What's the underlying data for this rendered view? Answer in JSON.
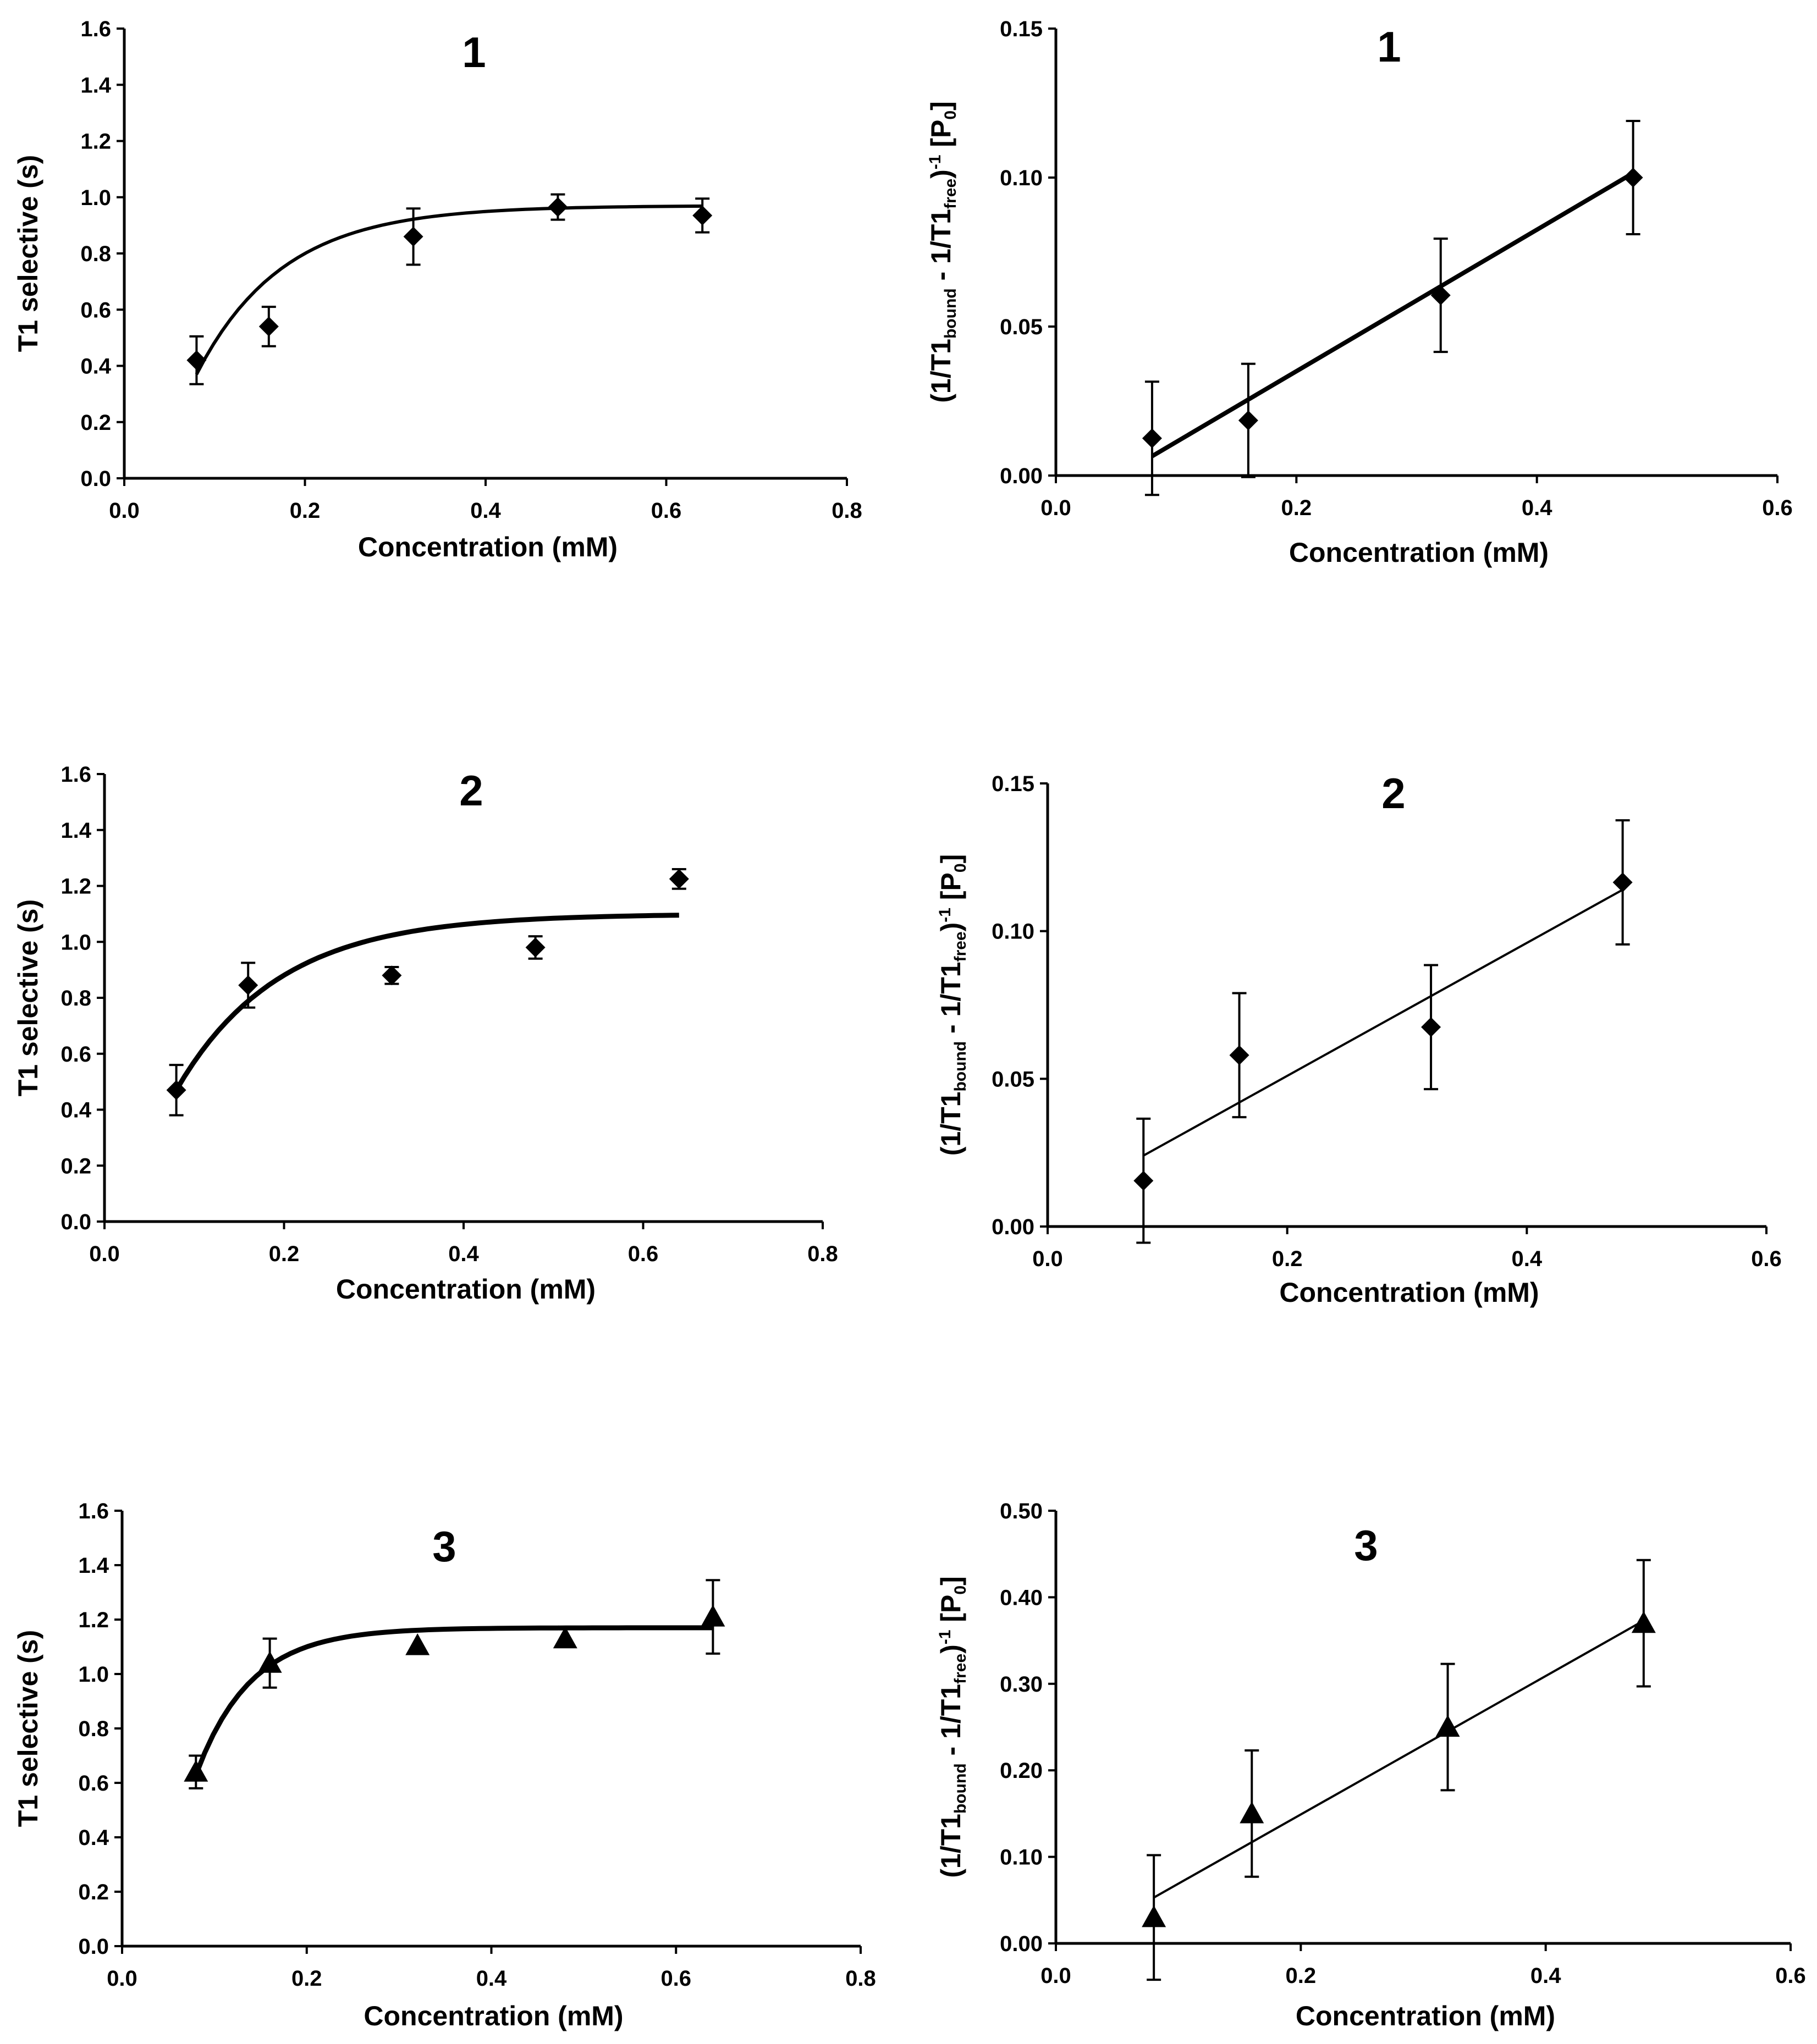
{
  "colors": {
    "ink": "#000000",
    "background": "#ffffff"
  },
  "chart_data": [
    {
      "id": "p1a",
      "type": "scatter",
      "title": "1",
      "xlabel": "Concentration (mM)",
      "ylabel": "T1 selective (s)",
      "xlim": [
        0,
        0.8
      ],
      "ylim": [
        0,
        1.6
      ],
      "x_ticks": [
        "0.0",
        "0.2",
        "0.4",
        "0.6",
        "0.8"
      ],
      "y_ticks": [
        "0.0",
        "0.2",
        "0.4",
        "0.6",
        "0.8",
        "1.0",
        "1.2",
        "1.4",
        "1.6"
      ],
      "marker": "diamond",
      "points": [
        {
          "x": 0.08,
          "y": 0.42,
          "err": 0.085
        },
        {
          "x": 0.16,
          "y": 0.54,
          "err": 0.07
        },
        {
          "x": 0.32,
          "y": 0.86,
          "err": 0.1
        },
        {
          "x": 0.48,
          "y": 0.965,
          "err": 0.045
        },
        {
          "x": 0.64,
          "y": 0.935,
          "err": 0.06
        }
      ],
      "fit": {
        "model": "saturation",
        "ymax": 0.97,
        "y0": 0.37,
        "k": 10.5,
        "x0": 0.08,
        "x1": 0.64
      }
    },
    {
      "id": "p1b",
      "type": "scatter",
      "title": "1",
      "xlabel": "Concentration (mM)",
      "ylabel_parts": [
        "(1/T1",
        "bound",
        " - 1/T1",
        "free",
        ")",
        "-1",
        " [P",
        "0",
        "]"
      ],
      "xlim": [
        0,
        0.6
      ],
      "ylim": [
        0,
        0.15
      ],
      "x_ticks": [
        "0.0",
        "0.2",
        "0.4",
        "0.6"
      ],
      "y_ticks": [
        "0.00",
        "0.05",
        "0.10",
        "0.15"
      ],
      "marker": "diamond",
      "points": [
        {
          "x": 0.08,
          "y": 0.0125,
          "err": 0.019
        },
        {
          "x": 0.16,
          "y": 0.0185,
          "err": 0.019
        },
        {
          "x": 0.32,
          "y": 0.0605,
          "err": 0.019
        },
        {
          "x": 0.48,
          "y": 0.1,
          "err": 0.019
        }
      ],
      "fit": {
        "model": "linear",
        "slope": 0.2375,
        "intercept": -0.0125,
        "x0": 0.08,
        "x1": 0.48
      }
    },
    {
      "id": "p2a",
      "type": "scatter",
      "title": "2",
      "xlabel": "Concentration (mM)",
      "ylabel": "T1 selective (s)",
      "xlim": [
        0,
        0.8
      ],
      "ylim": [
        0,
        1.6
      ],
      "x_ticks": [
        "0.0",
        "0.2",
        "0.4",
        "0.6",
        "0.8"
      ],
      "y_ticks": [
        "0.0",
        "0.2",
        "0.4",
        "0.6",
        "0.8",
        "1.0",
        "1.2",
        "1.4",
        "1.6"
      ],
      "marker": "diamond",
      "points": [
        {
          "x": 0.08,
          "y": 0.47,
          "err": 0.09
        },
        {
          "x": 0.16,
          "y": 0.845,
          "err": 0.08
        },
        {
          "x": 0.32,
          "y": 0.88,
          "err": 0.03
        },
        {
          "x": 0.48,
          "y": 0.98,
          "err": 0.04
        },
        {
          "x": 0.64,
          "y": 1.225,
          "err": 0.035
        }
      ],
      "fit": {
        "model": "saturation",
        "ymax": 1.1,
        "y0": 0.47,
        "k": 8.8,
        "x0": 0.08,
        "x1": 0.64
      }
    },
    {
      "id": "p2b",
      "type": "scatter",
      "title": "2",
      "xlabel": "Concentration (mM)",
      "ylabel_parts": [
        "(1/T1",
        "bound",
        " - 1/T1",
        "free",
        ")",
        "-1",
        " [P",
        "0",
        "]"
      ],
      "xlim": [
        0,
        0.6
      ],
      "ylim": [
        0,
        0.15
      ],
      "x_ticks": [
        "0.0",
        "0.2",
        "0.4",
        "0.6"
      ],
      "y_ticks": [
        "0.00",
        "0.05",
        "0.10",
        "0.15"
      ],
      "marker": "diamond",
      "points": [
        {
          "x": 0.08,
          "y": 0.0155,
          "err": 0.021
        },
        {
          "x": 0.16,
          "y": 0.058,
          "err": 0.021
        },
        {
          "x": 0.32,
          "y": 0.0675,
          "err": 0.021
        },
        {
          "x": 0.48,
          "y": 0.1165,
          "err": 0.021
        }
      ],
      "fit": {
        "model": "linear",
        "slope": 0.225,
        "intercept": 0.006,
        "x0": 0.08,
        "x1": 0.48
      }
    },
    {
      "id": "p3a",
      "type": "scatter",
      "title": "3",
      "xlabel": "Concentration (mM)",
      "ylabel": "T1 selective (s)",
      "xlim": [
        0,
        0.8
      ],
      "ylim": [
        0,
        1.6
      ],
      "x_ticks": [
        "0.0",
        "0.2",
        "0.4",
        "0.6",
        "0.8"
      ],
      "y_ticks": [
        "0.0",
        "0.2",
        "0.4",
        "0.6",
        "0.8",
        "1.0",
        "1.2",
        "1.4",
        "1.6"
      ],
      "marker": "triangle",
      "points": [
        {
          "x": 0.08,
          "y": 0.64,
          "err": 0.06
        },
        {
          "x": 0.16,
          "y": 1.04,
          "err": 0.09
        },
        {
          "x": 0.32,
          "y": 1.105,
          "err": 0.0
        },
        {
          "x": 0.48,
          "y": 1.13,
          "err": 0.0
        },
        {
          "x": 0.64,
          "y": 1.21,
          "err": 0.135
        }
      ],
      "fit": {
        "model": "saturation",
        "ymax": 1.17,
        "y0": 0.63,
        "k": 17,
        "x0": 0.08,
        "x1": 0.64
      }
    },
    {
      "id": "p3b",
      "type": "scatter",
      "title": "3",
      "xlabel": "Concentration (mM)",
      "ylabel_parts": [
        "(1/T1",
        "bound",
        " - 1/T1",
        "free",
        ")",
        "-1",
        " [P",
        "0",
        "]"
      ],
      "xlim": [
        0,
        0.6
      ],
      "ylim": [
        0,
        0.5
      ],
      "x_ticks": [
        "0.0",
        "0.2",
        "0.4",
        "0.6"
      ],
      "y_ticks": [
        "0.00",
        "0.10",
        "0.20",
        "0.30",
        "0.40",
        "0.50"
      ],
      "marker": "triangle",
      "points": [
        {
          "x": 0.08,
          "y": 0.03,
          "err": 0.072
        },
        {
          "x": 0.16,
          "y": 0.15,
          "err": 0.073
        },
        {
          "x": 0.32,
          "y": 0.25,
          "err": 0.073
        },
        {
          "x": 0.48,
          "y": 0.37,
          "err": 0.073
        }
      ],
      "fit": {
        "model": "linear",
        "slope": 0.8,
        "intercept": -0.011,
        "x0": 0.08,
        "x1": 0.48
      }
    }
  ]
}
